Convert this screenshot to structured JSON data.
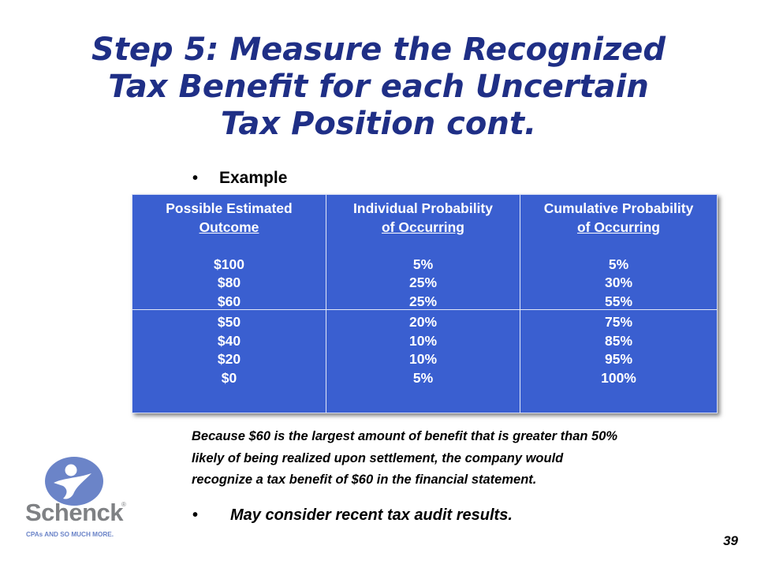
{
  "title": {
    "line1": "Step 5: Measure the Recognized",
    "line2": "Tax Benefit for each Uncertain",
    "line3": "Tax Position cont."
  },
  "example_label": "Example",
  "table": {
    "headers": [
      {
        "line1": "Possible Estimated",
        "line2": "Outcome"
      },
      {
        "line1": "Individual Probability",
        "line2": "of Occurring"
      },
      {
        "line1": "Cumulative Probability",
        "line2": "of Occurring"
      }
    ],
    "rows": [
      [
        "$100",
        "5%",
        "5%"
      ],
      [
        "$80",
        "25%",
        "30%"
      ],
      [
        "$60",
        "25%",
        "55%"
      ],
      [
        "$50",
        "20%",
        "75%"
      ],
      [
        "$40",
        "10%",
        "85%"
      ],
      [
        "$20",
        "10%",
        "95%"
      ],
      [
        "$0",
        "5%",
        "100%"
      ]
    ]
  },
  "explanation": {
    "line1": "Because $60 is the largest amount of benefit that is greater than 50%",
    "line2": "likely of being realized upon settlement, the company would",
    "line3": "recognize a tax benefit of $60 in the financial statement."
  },
  "consider_text": "May consider recent tax audit results.",
  "logo": {
    "name": "Schenck",
    "tagline": "CPAs AND SO MUCH MORE.",
    "mark": "®"
  },
  "page_number": "39",
  "colors": {
    "title": "#1f2f86",
    "table_fill": "#3a5fd0",
    "logo_grey": "#7f8184",
    "logo_blue": "#6b84c8"
  }
}
